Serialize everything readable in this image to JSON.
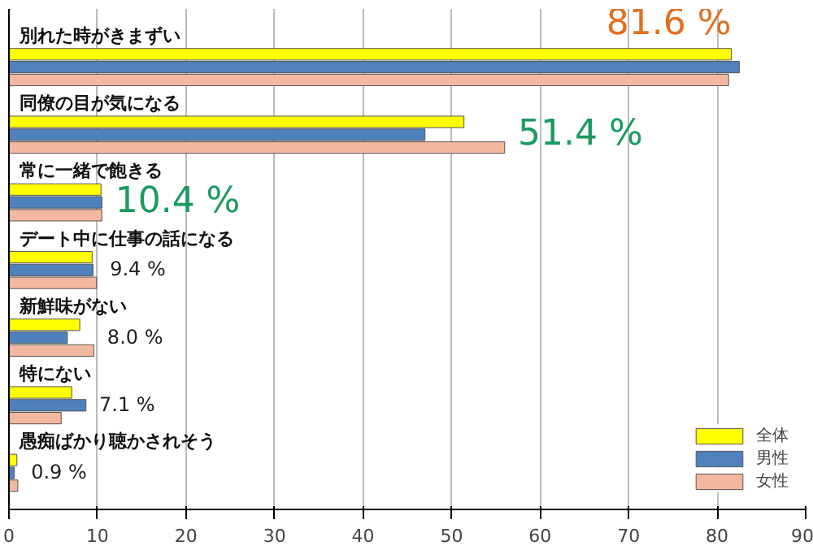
{
  "chart_data": {
    "type": "bar",
    "orientation": "horizontal",
    "categories": [
      "別れた時がきまずい",
      "同僚の目が気になる",
      "常に一緒で飽きる",
      "デート中に仕事の話になる",
      "新鮮味がない",
      "特にない",
      "愚痴ばかり聴かされそう"
    ],
    "series": [
      {
        "name": "全体",
        "color": "#ffff00",
        "values": [
          81.6,
          51.4,
          10.4,
          9.4,
          8.0,
          7.1,
          0.9
        ],
        "value_labels": [
          "81.6 %",
          "51.4 %",
          "10.4 %",
          "9.4 %",
          "8.0 %",
          "7.1 %",
          "0.9 %"
        ]
      },
      {
        "name": "男性",
        "color": "#4f81bd",
        "values": [
          82.5,
          47,
          10.5,
          9.5,
          6.6,
          8.7,
          0.6
        ]
      },
      {
        "name": "女性",
        "color": "#f4b8a0",
        "values": [
          81.3,
          56,
          10.5,
          9.9,
          9.6,
          5.9,
          1.0
        ]
      }
    ],
    "xlim": [
      0,
      90
    ],
    "xticks": [
      0,
      10,
      20,
      30,
      40,
      50,
      60,
      70,
      80,
      90
    ],
    "grid": "x",
    "legend": "bottom right",
    "tick_labels": "x"
  }
}
